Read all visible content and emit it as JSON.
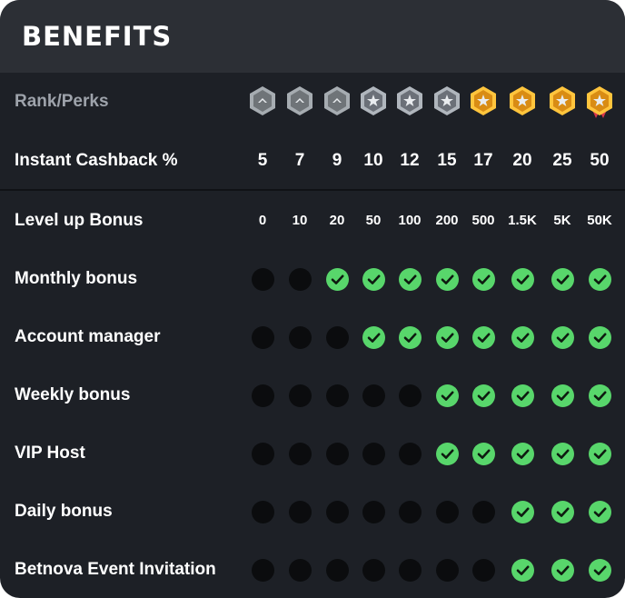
{
  "title": "BENEFITS",
  "header_row": {
    "label": "Rank/Perks"
  },
  "badges": [
    {
      "icon": "rank-1-silver-badge-icon",
      "fill": "#6f7478",
      "rim": "#a6acb1"
    },
    {
      "icon": "rank-2-silver-badge-icon",
      "fill": "#6f7478",
      "rim": "#a6acb1"
    },
    {
      "icon": "rank-3-silver-badge-icon",
      "fill": "#6f7478",
      "rim": "#a6acb1"
    },
    {
      "icon": "rank-4-silver-star-badge-icon",
      "fill": "#6b7078",
      "rim": "#b0b6bd"
    },
    {
      "icon": "rank-5-silver-star-badge-icon",
      "fill": "#6b7078",
      "rim": "#b0b6bd"
    },
    {
      "icon": "rank-6-silver-star-badge-icon",
      "fill": "#6b7078",
      "rim": "#b0b6bd"
    },
    {
      "icon": "rank-7-gold-star-badge-icon",
      "fill": "#d98c14",
      "rim": "#ffc53d"
    },
    {
      "icon": "rank-8-gold-star-badge-icon",
      "fill": "#d98c14",
      "rim": "#ffc53d"
    },
    {
      "icon": "rank-9-gold-winged-badge-icon",
      "fill": "#d98c14",
      "rim": "#ffc53d"
    },
    {
      "icon": "rank-10-gold-ribbon-badge-icon",
      "fill": "#d98c14",
      "rim": "#ffc53d"
    }
  ],
  "cashback": {
    "label": "Instant Cashback %",
    "values": [
      "5",
      "7",
      "9",
      "10",
      "12",
      "15",
      "17",
      "20",
      "25",
      "50"
    ]
  },
  "levelup": {
    "label": "Level up Bonus",
    "values": [
      "0",
      "10",
      "20",
      "50",
      "100",
      "200",
      "500",
      "1.5K",
      "5K",
      "50K"
    ]
  },
  "perks": [
    {
      "label": "Monthly bonus",
      "values": [
        false,
        false,
        true,
        true,
        true,
        true,
        true,
        true,
        true,
        true
      ]
    },
    {
      "label": "Account manager",
      "values": [
        false,
        false,
        false,
        true,
        true,
        true,
        true,
        true,
        true,
        true
      ]
    },
    {
      "label": "Weekly bonus",
      "values": [
        false,
        false,
        false,
        false,
        false,
        true,
        true,
        true,
        true,
        true
      ]
    },
    {
      "label": "VIP Host",
      "values": [
        false,
        false,
        false,
        false,
        false,
        true,
        true,
        true,
        true,
        true
      ]
    },
    {
      "label": "Daily bonus",
      "values": [
        false,
        false,
        false,
        false,
        false,
        false,
        false,
        true,
        true,
        true
      ]
    },
    {
      "label": "Betnova Event Invitation",
      "values": [
        false,
        false,
        false,
        false,
        false,
        false,
        false,
        true,
        true,
        true
      ]
    }
  ],
  "colors": {
    "check": "#58d66b",
    "locked": "#0b0c0e",
    "card": "#1d2026",
    "header": "#2c2f35"
  }
}
